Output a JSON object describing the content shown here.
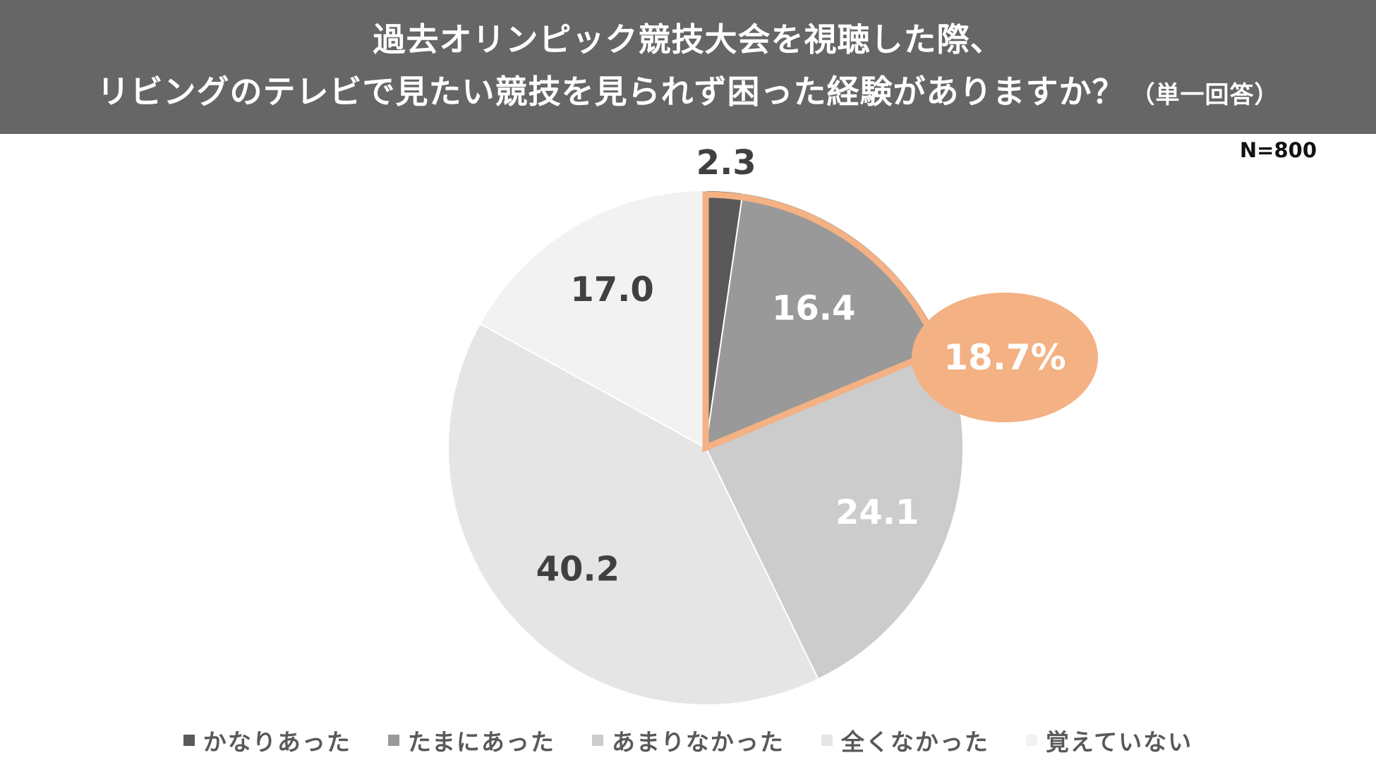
{
  "header": {
    "title_line1": "過去オリンピック競技大会を視聴した際、",
    "title_line2": "リビングのテレビで見たい競技を見られず困った経験がありますか？",
    "title_note": "（単一回答）"
  },
  "sample_size": "N=800",
  "chart_data": {
    "type": "pie",
    "unit": "%",
    "start": "12 o'clock",
    "direction": "clockwise",
    "slices": [
      {
        "label": "かなりあった",
        "value": 2.3,
        "value_label": "2.3",
        "color": "#595959",
        "label_color": "#404040"
      },
      {
        "label": "たまにあった",
        "value": 16.4,
        "value_label": "16.4",
        "color": "#999999",
        "label_color": "#ffffff"
      },
      {
        "label": "あまりなかった",
        "value": 24.1,
        "value_label": "24.1",
        "color": "#cccccc",
        "label_color": "#ffffff"
      },
      {
        "label": "全くなかった",
        "value": 40.2,
        "value_label": "40.2",
        "color": "#e5e5e5",
        "label_color": "#404040"
      },
      {
        "label": "覚えていない",
        "value": 17.0,
        "value_label": "17.0",
        "color": "#f2f2f2",
        "label_color": "#404040"
      }
    ],
    "highlight": {
      "slices": [
        "かなりあった",
        "たまにあった"
      ],
      "total_label": "18.7%",
      "color": "#f4b183",
      "text_color": "#ffffff"
    },
    "legend_position": "bottom"
  }
}
